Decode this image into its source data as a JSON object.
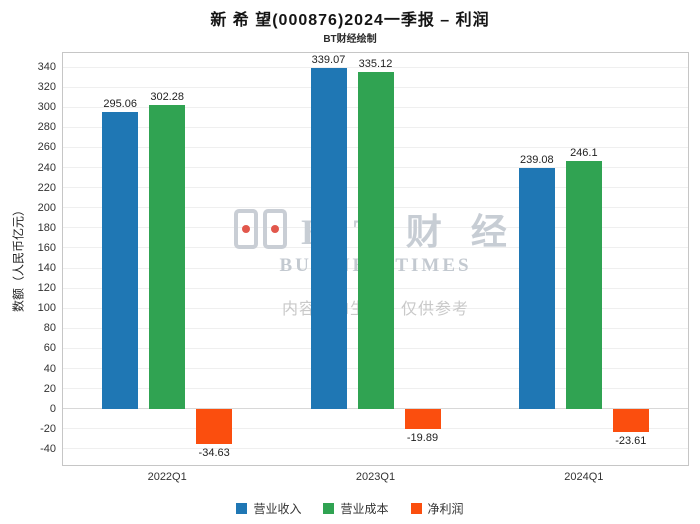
{
  "title": "新 希 望(000876)2024一季报 – 利润",
  "subtitle": "BT财经绘制",
  "watermark": {
    "brand": "B T 财 经",
    "brand_sub": "BUSINESSTIMES",
    "disclaimer": "内容由AI生成，仅供参考"
  },
  "chart_data": {
    "type": "bar",
    "categories": [
      "2022Q1",
      "2023Q1",
      "2024Q1"
    ],
    "series": [
      {
        "name": "营业收入",
        "color": "#1f77b4",
        "values": [
          295.06,
          339.07,
          239.08
        ]
      },
      {
        "name": "营业成本",
        "color": "#30a352",
        "values": [
          302.28,
          335.12,
          246.1
        ]
      },
      {
        "name": "净利润",
        "color": "#fb4e0e",
        "values": [
          -34.63,
          -19.89,
          -23.61
        ]
      }
    ],
    "xlabel": "",
    "ylabel": "数额（人民币亿元）",
    "ylim": [
      -56,
      354
    ],
    "yticks": {
      "min": -40,
      "max": 340,
      "step": 20
    },
    "grid": true,
    "legend_position": "bottom"
  }
}
